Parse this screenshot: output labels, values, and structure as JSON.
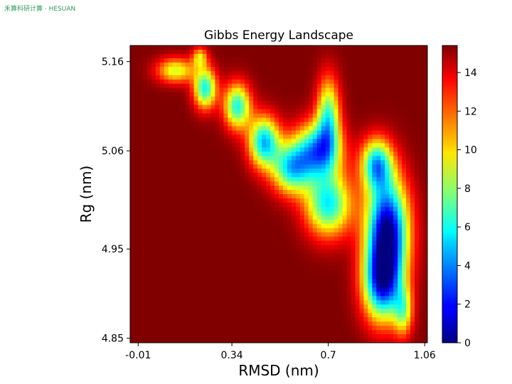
{
  "watermark": "禾算科研计算 · HESUAN",
  "chart_data": {
    "type": "heatmap",
    "title": "Gibbs Energy Landscape",
    "xlabel": "RMSD (nm)",
    "ylabel": "Rg (nm)",
    "xlim": [
      -0.04,
      1.07
    ],
    "ylim": [
      4.845,
      5.178
    ],
    "x_ticks": [
      {
        "value": -0.01,
        "label": "-0.01"
      },
      {
        "value": 0.34,
        "label": "0.34"
      },
      {
        "value": 0.7,
        "label": "0.7"
      },
      {
        "value": 1.06,
        "label": "1.06"
      }
    ],
    "y_ticks": [
      {
        "value": 5.16,
        "label": "5.16"
      },
      {
        "value": 5.06,
        "label": "5.06"
      },
      {
        "value": 4.95,
        "label": "4.95"
      },
      {
        "value": 4.85,
        "label": "4.85"
      }
    ],
    "colorbar": {
      "range": [
        0,
        15.4
      ],
      "ticks": [
        {
          "value": 0,
          "label": "0"
        },
        {
          "value": 2,
          "label": "2"
        },
        {
          "value": 4,
          "label": "4"
        },
        {
          "value": 6,
          "label": "6"
        },
        {
          "value": 8,
          "label": "8"
        },
        {
          "value": 10,
          "label": "10"
        },
        {
          "value": 12,
          "label": "12"
        },
        {
          "value": 14,
          "label": "14"
        }
      ],
      "colormap": "jet"
    },
    "background_energy": 15.4,
    "minima": [
      {
        "x": 0.92,
        "y": 4.97,
        "energy": 0.3
      },
      {
        "x": 0.66,
        "y": 5.06,
        "energy": 4.8
      },
      {
        "x": 0.46,
        "y": 5.07,
        "energy": 5.0
      },
      {
        "x": 0.24,
        "y": 5.13,
        "energy": 6.0
      },
      {
        "x": 0.36,
        "y": 5.11,
        "energy": 6.2
      },
      {
        "x": 0.13,
        "y": 5.15,
        "energy": 9.0
      }
    ]
  }
}
